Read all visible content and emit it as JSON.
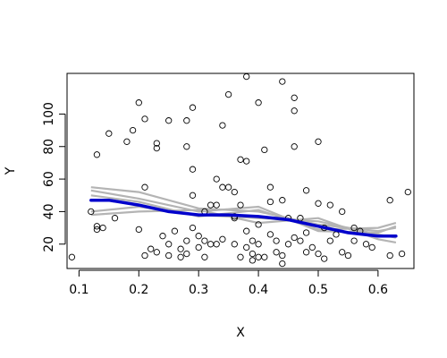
{
  "chart_data": {
    "type": "scatter",
    "title": "",
    "xlabel": "X",
    "ylabel": "Y",
    "xlim": [
      0.08,
      0.66
    ],
    "ylim": [
      5,
      125
    ],
    "xticks": [
      0.1,
      0.2,
      0.3,
      0.4,
      0.5,
      0.6
    ],
    "xtick_labels": [
      "0.1",
      "0.2",
      "0.3",
      "0.4",
      "0.5",
      "0.6"
    ],
    "yticks": [
      20,
      40,
      60,
      80,
      100
    ],
    "ytick_labels": [
      "20",
      "40",
      "60",
      "80",
      "100"
    ],
    "grid": false,
    "colors": {
      "points": "#000000",
      "fit": "#0000cc",
      "bands": "#b4b4b4"
    },
    "points": [
      [
        0.088,
        12
      ],
      [
        0.12,
        40
      ],
      [
        0.13,
        75
      ],
      [
        0.13,
        29
      ],
      [
        0.13,
        31
      ],
      [
        0.14,
        30
      ],
      [
        0.15,
        88
      ],
      [
        0.16,
        36
      ],
      [
        0.18,
        83
      ],
      [
        0.19,
        90
      ],
      [
        0.2,
        107
      ],
      [
        0.2,
        29
      ],
      [
        0.21,
        97
      ],
      [
        0.21,
        55
      ],
      [
        0.21,
        13
      ],
      [
        0.22,
        17
      ],
      [
        0.23,
        79
      ],
      [
        0.23,
        82
      ],
      [
        0.23,
        15
      ],
      [
        0.24,
        25
      ],
      [
        0.25,
        96
      ],
      [
        0.25,
        20
      ],
      [
        0.25,
        13
      ],
      [
        0.26,
        28
      ],
      [
        0.27,
        17
      ],
      [
        0.27,
        12
      ],
      [
        0.28,
        96
      ],
      [
        0.28,
        80
      ],
      [
        0.28,
        22
      ],
      [
        0.28,
        14
      ],
      [
        0.29,
        104
      ],
      [
        0.29,
        66
      ],
      [
        0.29,
        50
      ],
      [
        0.29,
        30
      ],
      [
        0.3,
        25
      ],
      [
        0.3,
        18
      ],
      [
        0.31,
        40
      ],
      [
        0.31,
        22
      ],
      [
        0.31,
        12
      ],
      [
        0.32,
        44
      ],
      [
        0.32,
        20
      ],
      [
        0.33,
        60
      ],
      [
        0.33,
        44
      ],
      [
        0.33,
        20
      ],
      [
        0.34,
        93
      ],
      [
        0.34,
        55
      ],
      [
        0.34,
        23
      ],
      [
        0.35,
        112
      ],
      [
        0.35,
        55
      ],
      [
        0.36,
        52
      ],
      [
        0.36,
        36
      ],
      [
        0.36,
        20
      ],
      [
        0.37,
        72
      ],
      [
        0.37,
        44
      ],
      [
        0.37,
        12
      ],
      [
        0.38,
        123
      ],
      [
        0.38,
        71
      ],
      [
        0.38,
        28
      ],
      [
        0.38,
        18
      ],
      [
        0.39,
        22
      ],
      [
        0.39,
        14
      ],
      [
        0.39,
        10
      ],
      [
        0.4,
        107
      ],
      [
        0.4,
        32
      ],
      [
        0.4,
        20
      ],
      [
        0.4,
        12
      ],
      [
        0.41,
        78
      ],
      [
        0.41,
        12
      ],
      [
        0.42,
        55
      ],
      [
        0.42,
        46
      ],
      [
        0.42,
        26
      ],
      [
        0.43,
        22
      ],
      [
        0.43,
        15
      ],
      [
        0.44,
        120
      ],
      [
        0.44,
        47
      ],
      [
        0.44,
        13
      ],
      [
        0.45,
        36
      ],
      [
        0.45,
        20
      ],
      [
        0.46,
        110
      ],
      [
        0.46,
        102
      ],
      [
        0.46,
        80
      ],
      [
        0.46,
        24
      ],
      [
        0.47,
        36
      ],
      [
        0.47,
        22
      ],
      [
        0.48,
        53
      ],
      [
        0.48,
        27
      ],
      [
        0.48,
        15
      ],
      [
        0.49,
        18
      ],
      [
        0.5,
        83
      ],
      [
        0.5,
        45
      ],
      [
        0.5,
        14
      ],
      [
        0.51,
        30
      ],
      [
        0.51,
        11
      ],
      [
        0.52,
        44
      ],
      [
        0.52,
        22
      ],
      [
        0.53,
        26
      ],
      [
        0.54,
        15
      ],
      [
        0.54,
        40
      ],
      [
        0.55,
        13
      ],
      [
        0.56,
        30
      ],
      [
        0.56,
        22
      ],
      [
        0.57,
        28
      ],
      [
        0.58,
        20
      ],
      [
        0.59,
        18
      ],
      [
        0.62,
        47
      ],
      [
        0.62,
        13
      ],
      [
        0.64,
        14
      ],
      [
        0.65,
        52
      ],
      [
        0.44,
        8
      ],
      [
        0.36,
        37
      ]
    ],
    "fit_line": {
      "x": [
        0.12,
        0.15,
        0.2,
        0.25,
        0.3,
        0.35,
        0.4,
        0.45,
        0.5,
        0.55,
        0.6,
        0.63
      ],
      "y": [
        47,
        47,
        44,
        40,
        38,
        38,
        37,
        35,
        31,
        27,
        25,
        25
      ]
    },
    "band_lines": [
      {
        "x": [
          0.12,
          0.2,
          0.3,
          0.4,
          0.5,
          0.6,
          0.63
        ],
        "y": [
          55,
          52,
          42,
          40,
          32,
          28,
          30
        ]
      },
      {
        "x": [
          0.12,
          0.2,
          0.3,
          0.4,
          0.5,
          0.6,
          0.63
        ],
        "y": [
          40,
          43,
          38,
          36,
          34,
          26,
          24
        ]
      },
      {
        "x": [
          0.12,
          0.2,
          0.3,
          0.4,
          0.5,
          0.6,
          0.63
        ],
        "y": [
          50,
          46,
          37,
          41,
          29,
          30,
          33
        ]
      },
      {
        "x": [
          0.12,
          0.2,
          0.3,
          0.4,
          0.5,
          0.6,
          0.63
        ],
        "y": [
          38,
          40,
          41,
          33,
          36,
          23,
          21
        ]
      },
      {
        "x": [
          0.12,
          0.2,
          0.3,
          0.4,
          0.5,
          0.6,
          0.63
        ],
        "y": [
          53,
          48,
          40,
          43,
          28,
          27,
          31
        ]
      }
    ]
  }
}
